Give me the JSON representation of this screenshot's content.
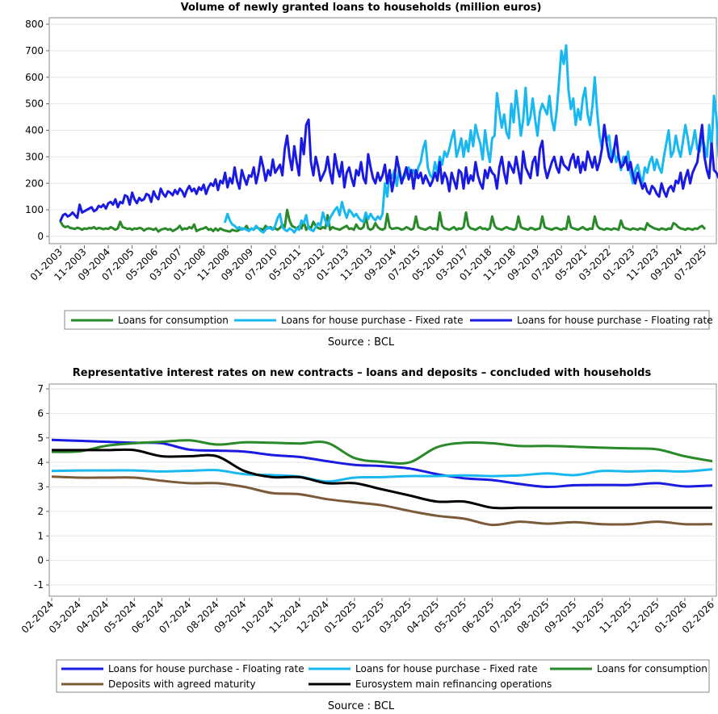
{
  "chart_data": [
    {
      "type": "line",
      "title": "Volume of newly granted loans to households (million euros)",
      "xlabel": "",
      "ylabel": "",
      "ylim": [
        0,
        800
      ],
      "yticks": [
        0,
        100,
        200,
        300,
        400,
        500,
        600,
        700,
        800
      ],
      "grid": "horizontal",
      "legend": "bottom",
      "source": "Source : BCL",
      "x_start": "01-2003",
      "x_step_months": 1,
      "tick_labels": [
        "01-2003",
        "11-2003",
        "09-2004",
        "07-2005",
        "05-2006",
        "03-2007",
        "01-2008",
        "11-2008",
        "09-2009",
        "07-2010",
        "05-2011",
        "03-2012",
        "01-2013",
        "11-2013",
        "09-2014",
        "07-2015",
        "05-2016",
        "03-2017",
        "01-2018",
        "11-2018",
        "09-2019",
        "07-2020",
        "05-2021",
        "03-2022",
        "01-2023",
        "11-2023",
        "09-2024",
        "07-2025"
      ],
      "series": [
        {
          "name": "Loans for consumption",
          "color": "#2a8a2a",
          "start_index": 0,
          "values": [
            55,
            40,
            35,
            38,
            32,
            30,
            28,
            33,
            30,
            25,
            30,
            28,
            32,
            30,
            35,
            28,
            32,
            30,
            27,
            30,
            28,
            35,
            30,
            25,
            30,
            55,
            35,
            32,
            28,
            30,
            25,
            30,
            28,
            32,
            30,
            22,
            28,
            30,
            28,
            25,
            30,
            18,
            25,
            28,
            30,
            25,
            28,
            20,
            25,
            30,
            40,
            25,
            30,
            28,
            35,
            30,
            45,
            20,
            25,
            28,
            30,
            35,
            25,
            28,
            20,
            30,
            22,
            30,
            25,
            22,
            20,
            18,
            25,
            22,
            20,
            25,
            30,
            28,
            40,
            22,
            30,
            25,
            35,
            30,
            28,
            25,
            40,
            30,
            35,
            28,
            30,
            25,
            32,
            45,
            35,
            100,
            60,
            40,
            35,
            30,
            38,
            30,
            55,
            25,
            38,
            30,
            55,
            40,
            32,
            28,
            35,
            30,
            80,
            25,
            35,
            30,
            28,
            25,
            30,
            35,
            40,
            28,
            30,
            25,
            45,
            30,
            28,
            35,
            75,
            30,
            25,
            30,
            50,
            35,
            28,
            25,
            30,
            85,
            35,
            28,
            30,
            32,
            30,
            25,
            28,
            35,
            30,
            25,
            30,
            75,
            35,
            30,
            28,
            25,
            30,
            35,
            28,
            30,
            25,
            90,
            40,
            30,
            28,
            25,
            30,
            35,
            25,
            30,
            28,
            35,
            90,
            40,
            30,
            28,
            25,
            30,
            35,
            28,
            30,
            25,
            30,
            75,
            40,
            30,
            28,
            25,
            30,
            35,
            30,
            28,
            25,
            30,
            75,
            35,
            30,
            28,
            25,
            32,
            30,
            25,
            28,
            30,
            75,
            35,
            30,
            28,
            25,
            30,
            32,
            28,
            25,
            30,
            28,
            75,
            35,
            30,
            28,
            25,
            30,
            35,
            28,
            25,
            30,
            28,
            75,
            40,
            30,
            28,
            25,
            30,
            28,
            25,
            30,
            28,
            25,
            60,
            35,
            30,
            28,
            25,
            30,
            28,
            25,
            30,
            28,
            25,
            50,
            40,
            35,
            30,
            28,
            25,
            30,
            28,
            25,
            30,
            28,
            50,
            45,
            35,
            30,
            28,
            25,
            30,
            28,
            25,
            30,
            28,
            35,
            40,
            30
          ]
        },
        {
          "name": "Loans for house purchase - Fixed rate",
          "color": "#1ab8f0",
          "start_index": 69,
          "values": [
            55,
            85,
            60,
            45,
            40,
            30,
            35,
            25,
            30,
            25,
            20,
            30,
            25,
            40,
            30,
            20,
            15,
            25,
            35,
            30,
            25,
            40,
            70,
            85,
            35,
            25,
            20,
            30,
            25,
            15,
            30,
            25,
            60,
            50,
            80,
            30,
            25,
            20,
            35,
            50,
            40,
            90,
            60,
            40,
            70,
            85,
            100,
            110,
            80,
            130,
            95,
            70,
            100,
            90,
            75,
            85,
            70,
            60,
            55,
            90,
            65,
            85,
            70,
            60,
            75,
            65,
            85,
            200,
            150,
            240,
            220,
            250,
            190,
            260,
            210,
            220,
            240,
            260,
            230,
            250,
            220,
            260,
            280,
            330,
            360,
            260,
            230,
            220,
            280,
            240,
            300,
            270,
            320,
            300,
            330,
            370,
            400,
            300,
            330,
            370,
            300,
            360,
            320,
            400,
            340,
            420,
            380,
            350,
            290,
            400,
            330,
            280,
            370,
            380,
            540,
            470,
            410,
            460,
            390,
            370,
            500,
            430,
            550,
            470,
            380,
            440,
            560,
            420,
            450,
            520,
            440,
            380,
            470,
            500,
            480,
            460,
            530,
            440,
            400,
            470,
            580,
            700,
            650,
            720,
            550,
            480,
            520,
            420,
            480,
            440,
            520,
            560,
            460,
            420,
            490,
            600,
            470,
            380,
            330,
            420,
            360,
            380,
            300,
            330,
            280,
            310,
            250,
            300,
            280,
            320,
            240,
            200,
            250,
            270,
            230,
            200,
            260,
            240,
            280,
            300,
            250,
            290,
            260,
            240,
            300,
            350,
            400,
            300,
            320,
            380,
            330,
            300,
            360,
            420,
            370,
            310,
            350,
            400,
            330,
            320,
            380,
            340,
            300,
            420,
            330,
            530,
            450,
            300,
            260,
            240,
            220,
            270,
            210,
            200
          ]
        },
        {
          "name": "Loans for house purchase - Floating rate",
          "color": "#1a1ae0",
          "start_index": 0,
          "values": [
            60,
            80,
            85,
            75,
            80,
            90,
            80,
            70,
            120,
            90,
            95,
            100,
            105,
            110,
            95,
            100,
            115,
            110,
            120,
            105,
            125,
            130,
            120,
            140,
            110,
            130,
            125,
            155,
            150,
            120,
            165,
            140,
            125,
            145,
            135,
            140,
            160,
            155,
            130,
            170,
            150,
            140,
            180,
            160,
            150,
            170,
            165,
            155,
            175,
            160,
            180,
            170,
            150,
            175,
            190,
            170,
            180,
            160,
            185,
            175,
            195,
            160,
            185,
            200,
            190,
            215,
            175,
            210,
            200,
            240,
            185,
            220,
            200,
            260,
            210,
            180,
            250,
            220,
            195,
            230,
            225,
            260,
            200,
            240,
            300,
            260,
            210,
            250,
            230,
            290,
            240,
            255,
            270,
            230,
            330,
            380,
            300,
            250,
            340,
            280,
            230,
            370,
            310,
            420,
            440,
            280,
            230,
            300,
            260,
            210,
            230,
            250,
            300,
            240,
            200,
            310,
            260,
            225,
            280,
            185,
            240,
            260,
            220,
            190,
            250,
            230,
            280,
            220,
            200,
            310,
            260,
            220,
            200,
            240,
            210,
            230,
            270,
            200,
            250,
            170,
            220,
            300,
            250,
            200,
            230,
            260,
            215,
            250,
            180,
            250,
            220,
            240,
            200,
            230,
            210,
            190,
            210,
            240,
            210,
            280,
            200,
            240,
            220,
            170,
            240,
            210,
            180,
            250,
            240,
            180,
            260,
            200,
            230,
            210,
            280,
            230,
            200,
            180,
            250,
            220,
            260,
            240,
            230,
            180,
            260,
            300,
            240,
            200,
            280,
            260,
            240,
            300,
            250,
            200,
            320,
            260,
            240,
            220,
            280,
            300,
            230,
            330,
            360,
            260,
            220,
            250,
            280,
            300,
            260,
            240,
            300,
            270,
            260,
            250,
            290,
            310,
            260,
            300,
            240,
            280,
            250,
            320,
            290,
            260,
            300,
            250,
            280,
            330,
            420,
            350,
            300,
            280,
            320,
            380,
            300,
            260,
            270,
            300,
            250,
            280,
            230,
            200,
            240,
            210,
            180,
            200,
            170,
            160,
            190,
            180,
            160,
            150,
            200,
            170,
            150,
            180,
            190,
            170,
            210,
            200,
            240,
            180,
            220,
            250,
            200,
            240,
            260,
            280,
            350,
            420,
            300,
            250,
            220,
            350,
            250,
            240,
            220,
            210
          ]
        }
      ]
    },
    {
      "type": "line",
      "title": "Representative interest rates on new contracts – loans and deposits – concluded with households",
      "xlabel": "",
      "ylabel": "",
      "ylim": [
        -1,
        7
      ],
      "yticks": [
        -1,
        0,
        1,
        2,
        3,
        4,
        5,
        6,
        7
      ],
      "grid": "horizontal",
      "legend": "bottom",
      "source": "Source : BCL",
      "categories": [
        "02-2024",
        "03-2024",
        "04-2024",
        "05-2024",
        "06-2024",
        "07-2024",
        "08-2024",
        "09-2024",
        "10-2024",
        "11-2024",
        "12-2024",
        "01-2025",
        "02-2025",
        "03-2025",
        "04-2025",
        "05-2025",
        "06-2025",
        "07-2025",
        "08-2025",
        "09-2025",
        "10-2025",
        "11-2025",
        "12-2025",
        "01-2026",
        "02-2026"
      ],
      "series": [
        {
          "name": "Loans for house purchase - Floating rate",
          "color": "#1a1ae0",
          "values": [
            4.92,
            4.88,
            4.84,
            4.8,
            4.78,
            4.52,
            4.48,
            4.44,
            4.3,
            4.22,
            4.05,
            3.9,
            3.85,
            3.75,
            3.52,
            3.35,
            3.28,
            3.12,
            3.0,
            3.07,
            3.08,
            3.08,
            3.15,
            3.02,
            3.06
          ]
        },
        {
          "name": "Loans for house purchase - Fixed rate",
          "color": "#1ab8f0",
          "values": [
            3.65,
            3.67,
            3.67,
            3.67,
            3.63,
            3.66,
            3.68,
            3.52,
            3.48,
            3.42,
            3.22,
            3.38,
            3.4,
            3.44,
            3.44,
            3.47,
            3.44,
            3.47,
            3.55,
            3.48,
            3.65,
            3.63,
            3.66,
            3.63,
            3.72
          ]
        },
        {
          "name": "Loans for consumption",
          "color": "#2a8a2a",
          "values": [
            4.43,
            4.45,
            4.68,
            4.78,
            4.84,
            4.9,
            4.73,
            4.82,
            4.8,
            4.77,
            4.8,
            4.18,
            4.02,
            4.0,
            4.62,
            4.8,
            4.78,
            4.67,
            4.67,
            4.64,
            4.6,
            4.57,
            4.53,
            4.25,
            4.05
          ]
        },
        {
          "name": "Deposits with agreed maturity",
          "color": "#7b5a3a",
          "values": [
            3.42,
            3.38,
            3.38,
            3.38,
            3.25,
            3.15,
            3.15,
            3.0,
            2.75,
            2.7,
            2.5,
            2.37,
            2.25,
            2.02,
            1.82,
            1.7,
            1.45,
            1.58,
            1.5,
            1.56,
            1.48,
            1.48,
            1.58,
            1.48,
            1.48
          ]
        },
        {
          "name": "Eurosystem main refinancing operations",
          "color": "#000000",
          "values": [
            4.5,
            4.5,
            4.5,
            4.5,
            4.25,
            4.25,
            4.25,
            3.65,
            3.4,
            3.4,
            3.15,
            3.15,
            2.9,
            2.65,
            2.4,
            2.4,
            2.15,
            2.15,
            2.15,
            2.15,
            2.15,
            2.15,
            2.15,
            2.15,
            2.15
          ]
        }
      ]
    }
  ]
}
